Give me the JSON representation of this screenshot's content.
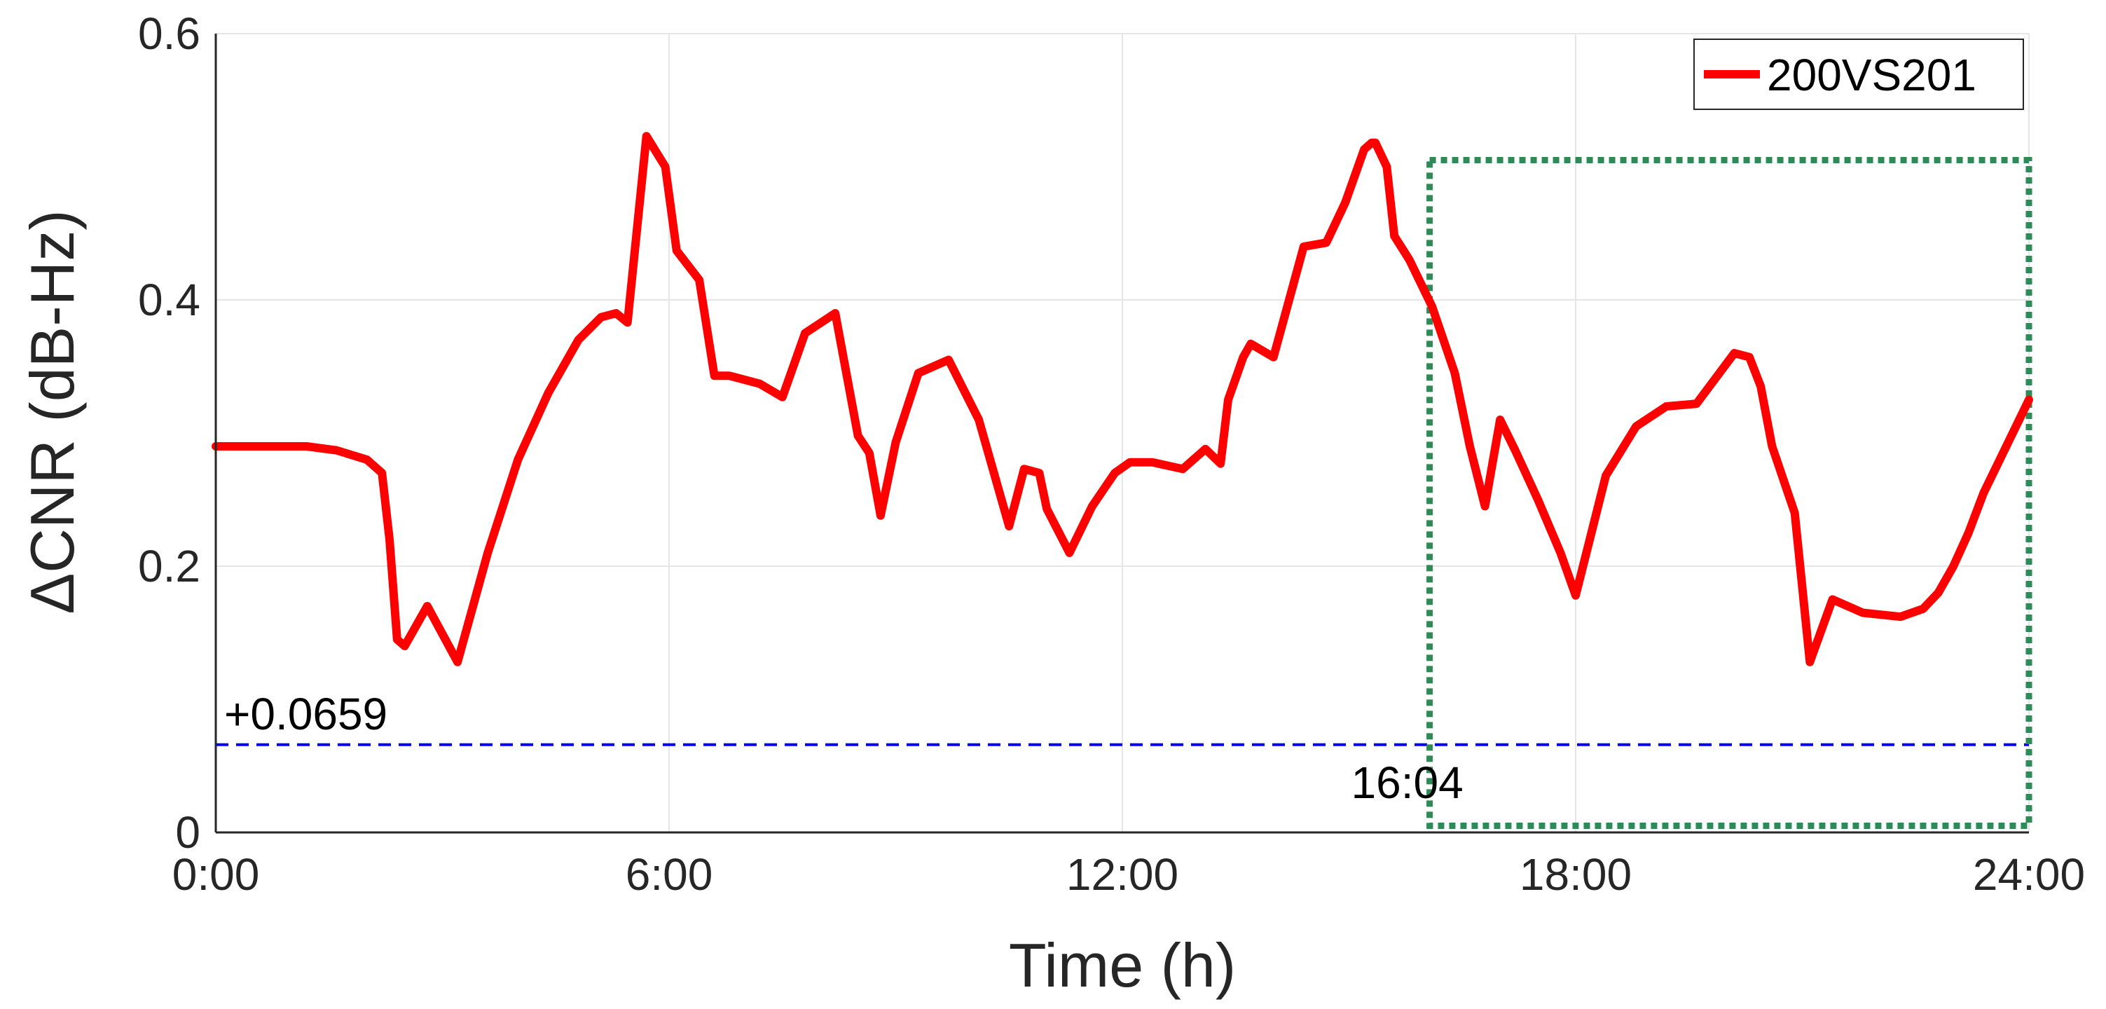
{
  "chart_data": {
    "type": "line",
    "title": "",
    "xlabel": "Time (h)",
    "ylabel": "ΔCNR (dB-Hz)",
    "xlim": [
      0,
      24
    ],
    "ylim": [
      0,
      0.6
    ],
    "xticks": [
      0,
      6,
      12,
      18,
      24
    ],
    "xtick_labels": [
      "0:00",
      "6:00",
      "12:00",
      "18:00",
      "24:00"
    ],
    "yticks": [
      0,
      0.2,
      0.4,
      0.6
    ],
    "ytick_labels": [
      "0",
      "0.2",
      "0.4",
      "0.6"
    ],
    "grid": true,
    "legend_position": "top-right",
    "series": [
      {
        "name": "200VS201",
        "color": "#ff0000",
        "x": [
          0,
          0.6,
          1.2,
          1.6,
          2.0,
          2.2,
          2.3,
          2.4,
          2.5,
          2.8,
          3.2,
          3.6,
          4.0,
          4.4,
          4.8,
          5.1,
          5.3,
          5.45,
          5.7,
          5.95,
          6.1,
          6.4,
          6.6,
          6.8,
          7.2,
          7.5,
          7.8,
          8.2,
          8.5,
          8.65,
          8.8,
          9.0,
          9.3,
          9.7,
          10.1,
          10.5,
          10.7,
          10.9,
          11.0,
          11.3,
          11.6,
          11.9,
          12.1,
          12.4,
          12.8,
          13.1,
          13.3,
          13.4,
          13.6,
          13.7,
          14.0,
          14.4,
          14.7,
          14.95,
          15.2,
          15.3,
          15.35,
          15.5,
          15.6,
          15.8,
          16.1,
          16.4,
          16.6,
          16.8,
          17.0,
          17.2,
          17.5,
          17.8,
          18.0,
          18.4,
          18.8,
          19.2,
          19.6,
          20.1,
          20.3,
          20.45,
          20.6,
          20.9,
          21.1,
          21.4,
          21.8,
          22.3,
          22.6,
          22.8,
          23.0,
          23.2,
          23.4,
          24.0
        ],
        "y": [
          0.29,
          0.29,
          0.29,
          0.287,
          0.28,
          0.27,
          0.22,
          0.145,
          0.14,
          0.17,
          0.128,
          0.21,
          0.28,
          0.33,
          0.37,
          0.387,
          0.39,
          0.383,
          0.523,
          0.5,
          0.437,
          0.415,
          0.343,
          0.343,
          0.337,
          0.327,
          0.375,
          0.39,
          0.298,
          0.285,
          0.238,
          0.293,
          0.345,
          0.355,
          0.31,
          0.23,
          0.273,
          0.27,
          0.243,
          0.21,
          0.245,
          0.27,
          0.278,
          0.278,
          0.273,
          0.288,
          0.277,
          0.325,
          0.357,
          0.367,
          0.357,
          0.44,
          0.443,
          0.473,
          0.513,
          0.518,
          0.518,
          0.5,
          0.448,
          0.43,
          0.395,
          0.345,
          0.29,
          0.245,
          0.31,
          0.287,
          0.25,
          0.21,
          0.178,
          0.268,
          0.305,
          0.32,
          0.322,
          0.36,
          0.357,
          0.335,
          0.29,
          0.24,
          0.128,
          0.175,
          0.165,
          0.162,
          0.168,
          0.18,
          0.2,
          0.225,
          0.255,
          0.325
        ]
      }
    ],
    "reference_line": {
      "y": 0.0659,
      "color": "#0000ff",
      "style": "dashed",
      "label": "+0.0659"
    },
    "highlight_box": {
      "x0": 16.067,
      "x1": 24,
      "y0": 0.005,
      "y1": 0.505,
      "color": "#2e8b57",
      "style": "dotted",
      "label": "16:04"
    }
  }
}
